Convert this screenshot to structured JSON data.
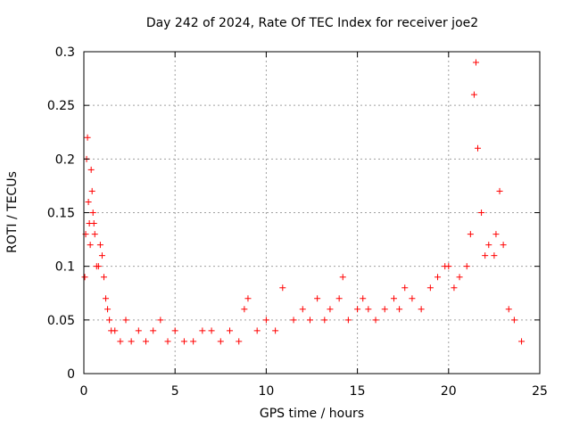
{
  "chart_data": {
    "type": "scatter",
    "title": "Day 242 of 2024, Rate Of TEC Index for receiver joe2",
    "xlabel": "GPS time / hours",
    "ylabel": "ROTI / TECUs",
    "xlim": [
      0,
      25
    ],
    "ylim": [
      0,
      0.3
    ],
    "xticks": [
      0,
      5,
      10,
      15,
      20,
      25
    ],
    "yticks": [
      0,
      0.05,
      0.1,
      0.15,
      0.2,
      0.25,
      0.3
    ],
    "xtick_labels": [
      "0",
      "5",
      "10",
      "15",
      "20",
      "25"
    ],
    "ytick_labels": [
      "0",
      "0.05",
      "0.1",
      "0.15",
      "0.2",
      "0.25",
      "0.3"
    ],
    "grid": true,
    "marker": "+",
    "color": "#ff0000",
    "series": [
      {
        "x": [
          0.05,
          0.1,
          0.15,
          0.2,
          0.25,
          0.3,
          0.35,
          0.4,
          0.45,
          0.5,
          0.55,
          0.6,
          0.7,
          0.8,
          0.9,
          1.0,
          1.1,
          1.2,
          1.3,
          1.4,
          1.5,
          1.7,
          2.0,
          2.3,
          2.6,
          3.0,
          3.4,
          3.8,
          4.2,
          4.6,
          5.0,
          5.5,
          6.0,
          6.5,
          7.0,
          7.5,
          8.0,
          8.5,
          8.8,
          9.0,
          9.5,
          10.0,
          10.5,
          10.9,
          11.5,
          12.0,
          12.4,
          12.8,
          13.2,
          13.5,
          14.0,
          14.2,
          14.5,
          15.0,
          15.3,
          15.6,
          16.0,
          16.5,
          17.0,
          17.3,
          17.6,
          18.0,
          18.5,
          19.0,
          19.4,
          19.8,
          20.0,
          20.3,
          20.6,
          21.0,
          21.2,
          21.4,
          21.5,
          21.6,
          21.8,
          22.0,
          22.2,
          22.5,
          22.6,
          22.8,
          23.0,
          23.3,
          23.6,
          24.0
        ],
        "y": [
          0.09,
          0.13,
          0.2,
          0.22,
          0.16,
          0.14,
          0.12,
          0.19,
          0.17,
          0.15,
          0.14,
          0.13,
          0.1,
          0.1,
          0.12,
          0.11,
          0.09,
          0.07,
          0.06,
          0.05,
          0.04,
          0.04,
          0.03,
          0.05,
          0.03,
          0.04,
          0.03,
          0.04,
          0.05,
          0.03,
          0.04,
          0.03,
          0.03,
          0.04,
          0.04,
          0.03,
          0.04,
          0.03,
          0.06,
          0.07,
          0.04,
          0.05,
          0.04,
          0.08,
          0.05,
          0.06,
          0.05,
          0.07,
          0.05,
          0.06,
          0.07,
          0.09,
          0.05,
          0.06,
          0.07,
          0.06,
          0.05,
          0.06,
          0.07,
          0.06,
          0.08,
          0.07,
          0.06,
          0.08,
          0.09,
          0.1,
          0.1,
          0.08,
          0.09,
          0.1,
          0.13,
          0.26,
          0.29,
          0.21,
          0.15,
          0.11,
          0.12,
          0.11,
          0.13,
          0.17,
          0.12,
          0.06,
          0.05,
          0.03
        ]
      }
    ]
  }
}
